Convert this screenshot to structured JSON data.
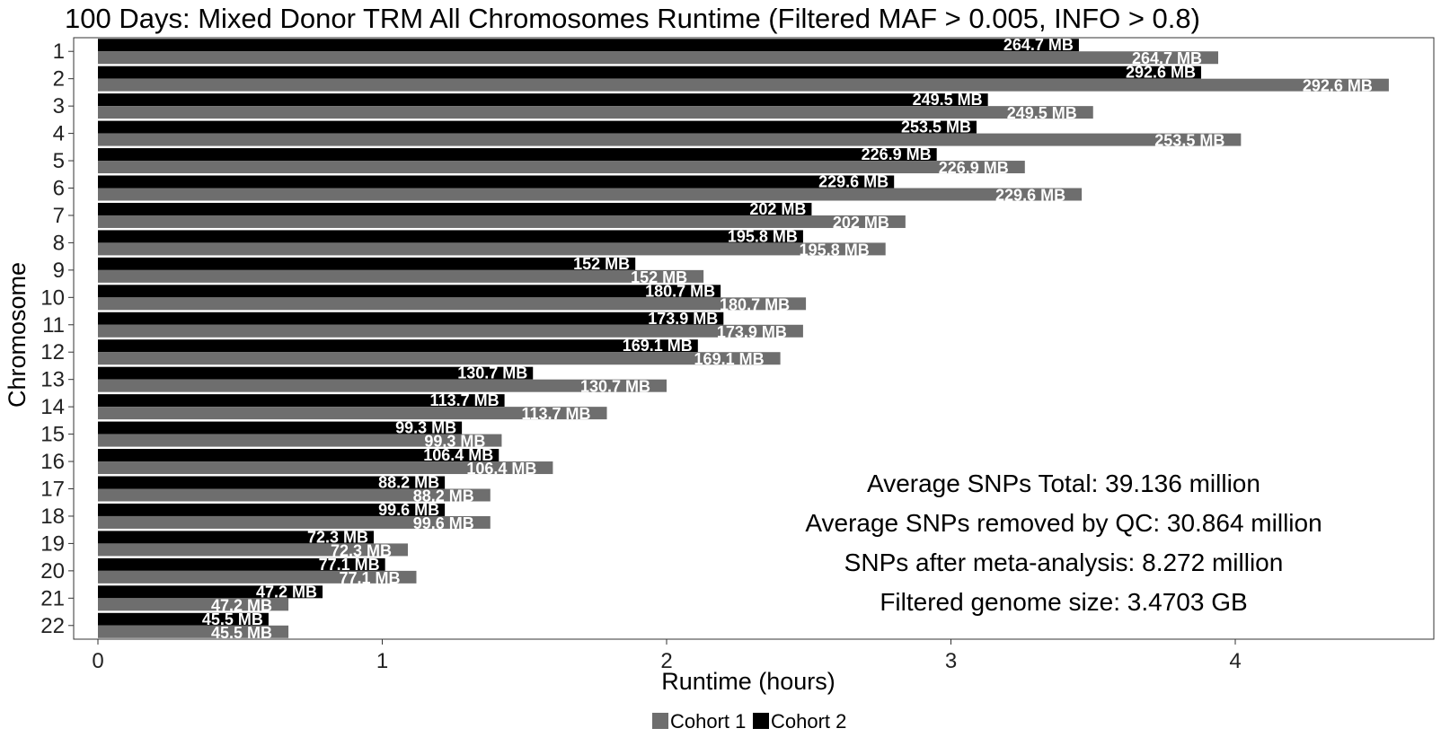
{
  "chart_data": {
    "type": "bar",
    "orientation": "horizontal",
    "title": "100 Days: Mixed Donor TRM All Chromosomes Runtime (Filtered MAF > 0.005, INFO > 0.8)",
    "xlabel": "Runtime (hours)",
    "ylabel": "Chromosome",
    "xlim": [
      0,
      4.65
    ],
    "x_ticks": [
      0,
      1,
      2,
      3,
      4
    ],
    "grid": false,
    "legend_position": "bottom",
    "categories": [
      "1",
      "2",
      "3",
      "4",
      "5",
      "6",
      "7",
      "8",
      "9",
      "10",
      "11",
      "12",
      "13",
      "14",
      "15",
      "16",
      "17",
      "18",
      "19",
      "20",
      "21",
      "22"
    ],
    "series": [
      {
        "name": "Cohort 1",
        "color": "#6e6e6e",
        "values": [
          3.94,
          4.54,
          3.5,
          4.02,
          3.26,
          3.46,
          2.84,
          2.77,
          2.13,
          2.49,
          2.48,
          2.4,
          2.0,
          1.79,
          1.42,
          1.6,
          1.38,
          1.38,
          1.09,
          1.12,
          0.67,
          0.67
        ],
        "labels": [
          "264.7 MB",
          "292.6 MB",
          "249.5 MB",
          "253.5 MB",
          "226.9 MB",
          "229.6 MB",
          "202 MB",
          "195.8 MB",
          "152 MB",
          "180.7 MB",
          "173.9 MB",
          "169.1 MB",
          "130.7 MB",
          "113.7 MB",
          "99.3 MB",
          "106.4 MB",
          "88.2 MB",
          "99.6 MB",
          "72.3 MB",
          "77.1 MB",
          "47.2 MB",
          "45.5 MB"
        ]
      },
      {
        "name": "Cohort 2",
        "color": "#000000",
        "values": [
          3.45,
          3.88,
          3.13,
          3.09,
          2.95,
          2.8,
          2.51,
          2.48,
          1.89,
          2.19,
          2.2,
          2.11,
          1.53,
          1.43,
          1.28,
          1.41,
          1.22,
          1.22,
          0.97,
          1.01,
          0.79,
          0.6
        ],
        "labels": [
          "264.7 MB",
          "292.6 MB",
          "249.5 MB",
          "253.5 MB",
          "226.9 MB",
          "229.6 MB",
          "202 MB",
          "195.8 MB",
          "152 MB",
          "180.7 MB",
          "173.9 MB",
          "169.1 MB",
          "130.7 MB",
          "113.7 MB",
          "99.3 MB",
          "106.4 MB",
          "88.2 MB",
          "99.6 MB",
          "72.3 MB",
          "77.1 MB",
          "47.2 MB",
          "45.5 MB"
        ]
      }
    ],
    "annotations": [
      "Average SNPs Total: 39.136 million",
      "Average SNPs removed by QC: 30.864 million",
      "SNPs after meta-analysis: 8.272 million",
      "Filtered genome size: 3.4703 GB"
    ]
  }
}
